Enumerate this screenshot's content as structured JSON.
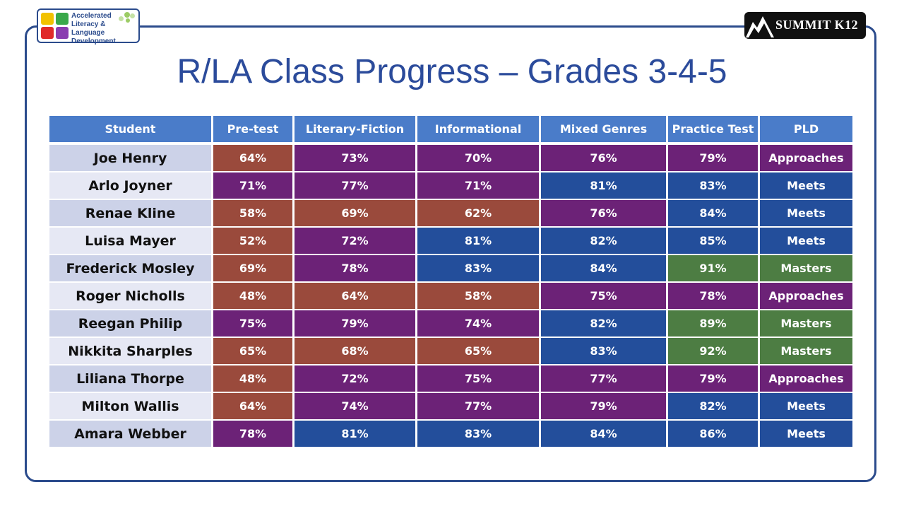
{
  "logo_left": {
    "line1": "Accelerated",
    "line2": "Literacy & Language",
    "line3": "Development"
  },
  "logo_right": {
    "text": "SUMMIT K12"
  },
  "title": "R/LA Class Progress – Grades 3-4-5",
  "table": {
    "headers": [
      "Student",
      "Pre-test",
      "Literary-Fiction",
      "Informational",
      "Mixed Genres",
      "Practice Test",
      "PLD"
    ],
    "colors": {
      "r": "#9a4a3c",
      "p": "#6c2277",
      "b": "#234e9b",
      "g": "#4d7d43",
      "header": "#4a7cc9"
    },
    "rows": [
      {
        "name": "Joe Henry",
        "cells": [
          "64%",
          "73%",
          "70%",
          "76%",
          "79%",
          "Approaches"
        ],
        "colors": [
          "r",
          "p",
          "p",
          "p",
          "p",
          "p"
        ]
      },
      {
        "name": "Arlo Joyner",
        "cells": [
          "71%",
          "77%",
          "71%",
          "81%",
          "83%",
          "Meets"
        ],
        "colors": [
          "p",
          "p",
          "p",
          "b",
          "b",
          "b"
        ]
      },
      {
        "name": "Renae Kline",
        "cells": [
          "58%",
          "69%",
          "62%",
          "76%",
          "84%",
          "Meets"
        ],
        "colors": [
          "r",
          "r",
          "r",
          "p",
          "b",
          "b"
        ]
      },
      {
        "name": "Luisa Mayer",
        "cells": [
          "52%",
          "72%",
          "81%",
          "82%",
          "85%",
          "Meets"
        ],
        "colors": [
          "r",
          "p",
          "b",
          "b",
          "b",
          "b"
        ]
      },
      {
        "name": "Frederick Mosley",
        "cells": [
          "69%",
          "78%",
          "83%",
          "84%",
          "91%",
          "Masters"
        ],
        "colors": [
          "r",
          "p",
          "b",
          "b",
          "g",
          "g"
        ]
      },
      {
        "name": "Roger Nicholls",
        "cells": [
          "48%",
          "64%",
          "58%",
          "75%",
          "78%",
          "Approaches"
        ],
        "colors": [
          "r",
          "r",
          "r",
          "p",
          "p",
          "p"
        ]
      },
      {
        "name": "Reegan Philip",
        "cells": [
          "75%",
          "79%",
          "74%",
          "82%",
          "89%",
          "Masters"
        ],
        "colors": [
          "p",
          "p",
          "p",
          "b",
          "g",
          "g"
        ]
      },
      {
        "name": "Nikkita Sharples",
        "cells": [
          "65%",
          "68%",
          "65%",
          "83%",
          "92%",
          "Masters"
        ],
        "colors": [
          "r",
          "r",
          "r",
          "b",
          "g",
          "g"
        ]
      },
      {
        "name": "Liliana Thorpe",
        "cells": [
          "48%",
          "72%",
          "75%",
          "77%",
          "79%",
          "Approaches"
        ],
        "colors": [
          "r",
          "p",
          "p",
          "p",
          "p",
          "p"
        ]
      },
      {
        "name": "Milton Wallis",
        "cells": [
          "64%",
          "74%",
          "77%",
          "79%",
          "82%",
          "Meets"
        ],
        "colors": [
          "r",
          "p",
          "p",
          "p",
          "b",
          "b"
        ]
      },
      {
        "name": "Amara Webber",
        "cells": [
          "78%",
          "81%",
          "83%",
          "84%",
          "86%",
          "Meets"
        ],
        "colors": [
          "p",
          "b",
          "b",
          "b",
          "b",
          "b"
        ]
      }
    ]
  }
}
